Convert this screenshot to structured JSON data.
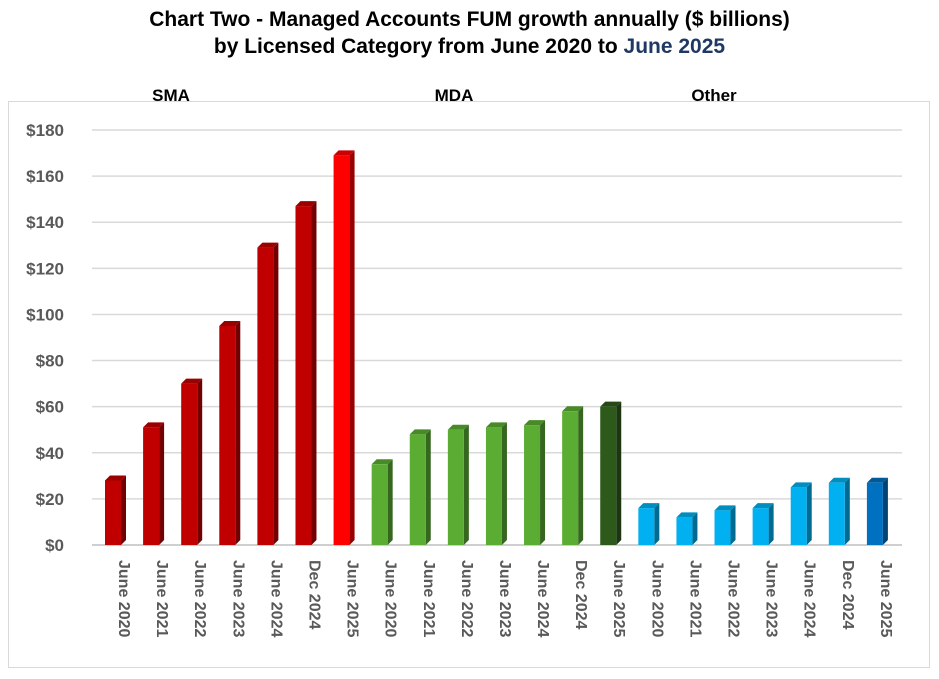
{
  "title": {
    "line1": "Chart Two - Managed Accounts FUM growth annually ($ billions)",
    "line2_prefix": "by Licensed Category from June 2020 to ",
    "line2_highlight": "June 2025"
  },
  "chart_data": {
    "type": "bar",
    "y_ticks": [
      "$0",
      "$20",
      "$40",
      "$60",
      "$80",
      "$100",
      "$120",
      "$140",
      "$160",
      "$180"
    ],
    "ylim": [
      0,
      180
    ],
    "grid": true,
    "groups": [
      {
        "name": "SMA",
        "categories": [
          "June 2020",
          "June 2021",
          "June 2022",
          "June 2023",
          "June 2024",
          "Dec 2024",
          "June 2025"
        ],
        "values": [
          28,
          51,
          70,
          95,
          129,
          147,
          169
        ],
        "colors": [
          "#c00000",
          "#c00000",
          "#c00000",
          "#c00000",
          "#c00000",
          "#c00000",
          "#ff0000"
        ]
      },
      {
        "name": "MDA",
        "categories": [
          "June 2020",
          "June 2021",
          "June 2022",
          "June 2023",
          "June 2024",
          "Dec 2024",
          "June 2025"
        ],
        "values": [
          35,
          48,
          50,
          51,
          52,
          58,
          60
        ],
        "colors": [
          "#5aac32",
          "#5aac32",
          "#5aac32",
          "#5aac32",
          "#5aac32",
          "#5aac32",
          "#2d5a1b"
        ]
      },
      {
        "name": "Other",
        "categories": [
          "June 2020",
          "June 2021",
          "June 2022",
          "June 2023",
          "June 2024",
          "Dec 2024",
          "June 2025"
        ],
        "values": [
          16,
          12,
          15,
          16,
          25,
          27,
          27
        ],
        "colors": [
          "#00b0f0",
          "#00b0f0",
          "#00b0f0",
          "#00b0f0",
          "#00b0f0",
          "#00b0f0",
          "#0070c0"
        ]
      }
    ]
  }
}
